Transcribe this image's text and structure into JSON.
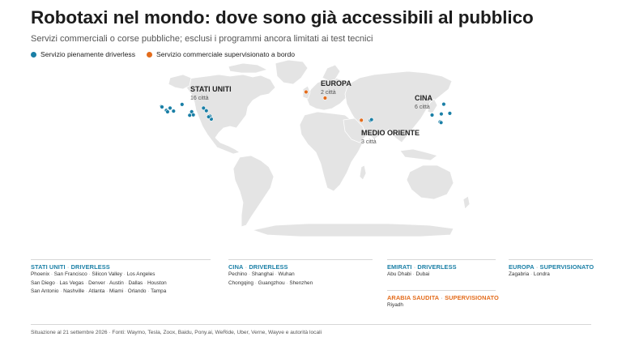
{
  "title": "Robotaxi nel mondo: dove sono già accessibili al pubblico",
  "subtitle": "Servizi commerciali o corse pubbliche; esclusi i programmi ancora limitati ai test tecnici",
  "legend": [
    {
      "label": "Servizio pienamente driverless",
      "color": "#1a7fa6"
    },
    {
      "label": "Servizio commerciale supervisionato a bordo",
      "color": "#e36c1c"
    }
  ],
  "colors": {
    "driverless": "#1a7fa6",
    "supervised": "#e36c1c",
    "land": "#e4e4e4"
  },
  "regions": {
    "usa": {
      "name": "STATI UNITI",
      "count": "16 città"
    },
    "europe": {
      "name": "EUROPA",
      "count": "2 città"
    },
    "china": {
      "name": "CINA",
      "count": "6 città"
    },
    "middle_east": {
      "name": "MEDIO ORIENTE",
      "count": "3 città"
    }
  },
  "map_points": [
    {
      "city": "San Francisco",
      "lon": -122.4,
      "lat": 37.8,
      "type": "driverless"
    },
    {
      "city": "Silicon Valley",
      "lon": -121.9,
      "lat": 37.3,
      "type": "driverless"
    },
    {
      "city": "Los Angeles",
      "lon": -118.2,
      "lat": 34.1,
      "type": "driverless"
    },
    {
      "city": "San Diego",
      "lon": -117.2,
      "lat": 32.7,
      "type": "driverless"
    },
    {
      "city": "Las Vegas",
      "lon": -115.1,
      "lat": 36.2,
      "type": "driverless"
    },
    {
      "city": "Phoenix",
      "lon": -112.1,
      "lat": 33.4,
      "type": "driverless"
    },
    {
      "city": "Denver",
      "lon": -104.9,
      "lat": 39.7,
      "type": "driverless"
    },
    {
      "city": "Austin",
      "lon": -97.7,
      "lat": 30.3,
      "type": "driverless"
    },
    {
      "city": "Dallas",
      "lon": -96.8,
      "lat": 32.8,
      "type": "driverless"
    },
    {
      "city": "Houston",
      "lon": -95.4,
      "lat": 29.8,
      "type": "driverless"
    },
    {
      "city": "San Antonio",
      "lon": -98.5,
      "lat": 29.4,
      "type": "driverless"
    },
    {
      "city": "Nashville",
      "lon": -86.8,
      "lat": 36.2,
      "type": "driverless"
    },
    {
      "city": "Atlanta",
      "lon": -84.4,
      "lat": 33.7,
      "type": "driverless"
    },
    {
      "city": "Miami",
      "lon": -80.2,
      "lat": 25.8,
      "type": "driverless"
    },
    {
      "city": "Orlando",
      "lon": -81.4,
      "lat": 28.5,
      "type": "driverless"
    },
    {
      "city": "Tampa",
      "lon": -82.5,
      "lat": 27.9,
      "type": "driverless"
    },
    {
      "city": "Londra",
      "lon": -0.1,
      "lat": 51.5,
      "type": "supervised"
    },
    {
      "city": "Zagabria",
      "lon": 16.0,
      "lat": 45.8,
      "type": "supervised"
    },
    {
      "city": "Riyadh",
      "lon": 46.7,
      "lat": 24.7,
      "type": "supervised"
    },
    {
      "city": "Abu Dhabi",
      "lon": 54.4,
      "lat": 24.5,
      "type": "driverless"
    },
    {
      "city": "Dubai",
      "lon": 55.3,
      "lat": 25.2,
      "type": "driverless"
    },
    {
      "city": "Pechino",
      "lon": 116.4,
      "lat": 39.9,
      "type": "driverless"
    },
    {
      "city": "Wuhan",
      "lon": 114.3,
      "lat": 30.6,
      "type": "driverless"
    },
    {
      "city": "Chongqing",
      "lon": 106.5,
      "lat": 29.6,
      "type": "driverless"
    },
    {
      "city": "Shanghai",
      "lon": 121.5,
      "lat": 31.2,
      "type": "driverless"
    },
    {
      "city": "Guangzhou",
      "lon": 113.3,
      "lat": 23.1,
      "type": "driverless"
    },
    {
      "city": "Shenzhen",
      "lon": 114.1,
      "lat": 22.5,
      "type": "driverless"
    }
  ],
  "panels": {
    "usa": {
      "country": "STATI UNITI",
      "status": "DRIVERLESS",
      "lines": [
        [
          "Phoenix",
          "San Francisco",
          "Silicon Valley",
          "Los Angeles"
        ],
        [
          "San Diego",
          "Las Vegas",
          "Denver",
          "Austin",
          "Dallas",
          "Houston"
        ],
        [
          "San Antonio",
          "Nashville",
          "Atlanta",
          "Miami",
          "Orlando",
          "Tampa"
        ]
      ]
    },
    "china": {
      "country": "CINA",
      "status": "DRIVERLESS",
      "lines": [
        [
          "Pechino",
          "Shanghai",
          "Wuhan"
        ],
        [
          "Chongqing",
          "Guangzhou",
          "Shenzhen"
        ]
      ]
    },
    "emirates": {
      "country": "EMIRATI",
      "status": "DRIVERLESS",
      "lines": [
        [
          "Abu Dhabi",
          "Dubai"
        ]
      ]
    },
    "saudi": {
      "country": "ARABIA SAUDITA",
      "status": "SUPERVISIONATO",
      "lines": [
        [
          "Riyadh"
        ]
      ]
    },
    "europe": {
      "country": "EUROPA",
      "status": "SUPERVISIONATO",
      "lines": [
        [
          "Zagabria",
          "Londra"
        ]
      ]
    }
  },
  "footer": "Situazione al 21 settembre 2026 · Fonti: Waymo, Tesla, Zoox, Baidu, Pony.ai, WeRide, Uber, Verne, Wayve e autorità locali"
}
